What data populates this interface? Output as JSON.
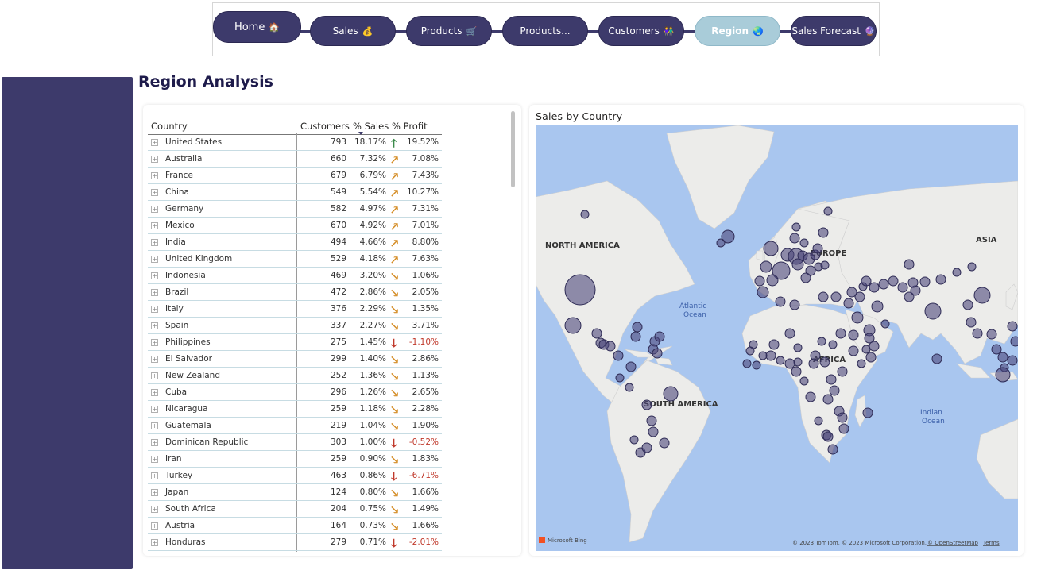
{
  "nav": {
    "items": [
      {
        "label": "Home",
        "icon": "🏠",
        "active": false
      },
      {
        "label": "Sales",
        "icon": "💰",
        "active": false
      },
      {
        "label": "Products",
        "icon": "🛒",
        "active": false
      },
      {
        "label": "Products...",
        "icon": "",
        "active": false
      },
      {
        "label": "Customers",
        "icon": "👫",
        "active": false
      },
      {
        "label": "Region",
        "icon": "🌏",
        "active": true
      },
      {
        "label": "Sales Forecast",
        "icon": "🔮",
        "active": false
      }
    ]
  },
  "page": {
    "title": "Region Analysis"
  },
  "table": {
    "headers": {
      "country": "Country",
      "customers": "Customers",
      "sales": "% Sales",
      "profit": "% Profit"
    },
    "rows": [
      {
        "country": "United States",
        "customers": "793",
        "sales": "18.17%",
        "trend": "up",
        "profit": "19.52%"
      },
      {
        "country": "Australia",
        "customers": "660",
        "sales": "7.32%",
        "trend": "upright",
        "profit": "7.08%"
      },
      {
        "country": "France",
        "customers": "679",
        "sales": "6.79%",
        "trend": "upright",
        "profit": "7.43%"
      },
      {
        "country": "China",
        "customers": "549",
        "sales": "5.54%",
        "trend": "upright",
        "profit": "10.27%"
      },
      {
        "country": "Germany",
        "customers": "582",
        "sales": "4.97%",
        "trend": "upright",
        "profit": "7.31%"
      },
      {
        "country": "Mexico",
        "customers": "670",
        "sales": "4.92%",
        "trend": "upright",
        "profit": "7.01%"
      },
      {
        "country": "India",
        "customers": "494",
        "sales": "4.66%",
        "trend": "upright",
        "profit": "8.80%"
      },
      {
        "country": "United Kingdom",
        "customers": "529",
        "sales": "4.18%",
        "trend": "upright",
        "profit": "7.63%"
      },
      {
        "country": "Indonesia",
        "customers": "469",
        "sales": "3.20%",
        "trend": "downright",
        "profit": "1.06%"
      },
      {
        "country": "Brazil",
        "customers": "472",
        "sales": "2.86%",
        "trend": "downright",
        "profit": "2.05%"
      },
      {
        "country": "Italy",
        "customers": "376",
        "sales": "2.29%",
        "trend": "downright",
        "profit": "1.35%"
      },
      {
        "country": "Spain",
        "customers": "337",
        "sales": "2.27%",
        "trend": "downright",
        "profit": "3.71%"
      },
      {
        "country": "Philippines",
        "customers": "275",
        "sales": "1.45%",
        "trend": "down",
        "profit": "-1.10%"
      },
      {
        "country": "El Salvador",
        "customers": "299",
        "sales": "1.40%",
        "trend": "downright",
        "profit": "2.86%"
      },
      {
        "country": "New Zealand",
        "customers": "252",
        "sales": "1.36%",
        "trend": "downright",
        "profit": "1.13%"
      },
      {
        "country": "Cuba",
        "customers": "296",
        "sales": "1.26%",
        "trend": "downright",
        "profit": "2.65%"
      },
      {
        "country": "Nicaragua",
        "customers": "259",
        "sales": "1.18%",
        "trend": "downright",
        "profit": "2.28%"
      },
      {
        "country": "Guatemala",
        "customers": "219",
        "sales": "1.04%",
        "trend": "downright",
        "profit": "1.90%"
      },
      {
        "country": "Dominican Republic",
        "customers": "303",
        "sales": "1.00%",
        "trend": "down",
        "profit": "-0.52%"
      },
      {
        "country": "Iran",
        "customers": "259",
        "sales": "0.90%",
        "trend": "downright",
        "profit": "1.83%"
      },
      {
        "country": "Turkey",
        "customers": "463",
        "sales": "0.86%",
        "trend": "down",
        "profit": "-6.71%"
      },
      {
        "country": "Japan",
        "customers": "124",
        "sales": "0.80%",
        "trend": "downright",
        "profit": "1.66%"
      },
      {
        "country": "South Africa",
        "customers": "204",
        "sales": "0.75%",
        "trend": "downright",
        "profit": "1.49%"
      },
      {
        "country": "Austria",
        "customers": "164",
        "sales": "0.73%",
        "trend": "downright",
        "profit": "1.66%"
      },
      {
        "country": "Honduras",
        "customers": "279",
        "sales": "0.71%",
        "trend": "down",
        "profit": "-2.01%"
      }
    ]
  },
  "map": {
    "title": "Sales by Country",
    "labels": {
      "north_america": "NORTH AMERICA",
      "europe": "EUROPE",
      "asia": "ASIA",
      "africa": "AFRICA",
      "south_america": "SOUTH AMERICA",
      "atlantic_1": "Atlantic",
      "atlantic_2": "Ocean",
      "indian_1": "Indian",
      "indian_2": "Ocean"
    },
    "credits": {
      "bing": "Microsoft Bing",
      "copyright": "© 2023 TomTom, © 2023 Microsoft Corporation,",
      "osm": "© OpenStreetMap",
      "terms": "Terms"
    }
  },
  "colors": {
    "nav": "#3d3a6b",
    "nav_active": "#a9ccd9",
    "sidebar": "#3d3a6b",
    "ocean": "#a9c6ef",
    "land": "#ececea",
    "bubble": "#5a5682",
    "trend_up": "#3b8a4a",
    "trend_mid": "#d48b22",
    "trend_down": "#c0392b"
  }
}
